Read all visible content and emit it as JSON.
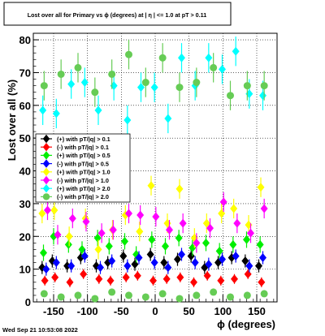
{
  "chart_data": {
    "type": "scatter",
    "title": "Lost over all for Primary vs ϕ (degrees) at |  η | <= 1.0 at pT > 0.11",
    "xlabel": "ϕ (degrees)",
    "ylabel": "Lost over all (%)",
    "xlim": [
      -180,
      180
    ],
    "ylim": [
      0,
      82
    ],
    "x_ticks": [
      -150,
      -100,
      -50,
      0,
      50,
      100,
      150
    ],
    "y_ticks": [
      0,
      10,
      20,
      30,
      40,
      50,
      60,
      70,
      80
    ],
    "grid": true,
    "legend_position": "left",
    "timestamp": "Wed Sep 21 10:53:08 2022",
    "series": [
      {
        "name": "(+) with pT/|q| > 0.1",
        "color": "#000000",
        "marker": "diamond",
        "x": [
          -167,
          -152,
          -130,
          -110,
          -87,
          -70,
          -47,
          -30,
          -7,
          13,
          33,
          53,
          73,
          93,
          113,
          133,
          153
        ],
        "y": [
          10.5,
          12.5,
          11.0,
          13.5,
          11.0,
          12.0,
          14.0,
          11.5,
          14.5,
          12.0,
          13.0,
          14.0,
          10.5,
          12.0,
          13.5,
          12.5,
          11.0
        ],
        "err": [
          2,
          2,
          2,
          2,
          2,
          2,
          2,
          2,
          2,
          2,
          2,
          2,
          2,
          2,
          2,
          2,
          2
        ]
      },
      {
        "name": "(-) with pT/|q| > 0.1",
        "color": "#ff0000",
        "marker": "diamond",
        "x": [
          -163,
          -148,
          -126,
          -106,
          -83,
          -66,
          -43,
          -26,
          -3,
          17,
          37,
          57,
          77,
          97,
          117,
          137,
          157
        ],
        "y": [
          6.5,
          7.5,
          6.0,
          8.5,
          7.0,
          6.5,
          7.5,
          8.0,
          6.5,
          7.0,
          7.5,
          6.0,
          8.0,
          6.5,
          7.0,
          8.5,
          6.0
        ],
        "err": [
          1.5,
          1.5,
          1.5,
          1.5,
          1.5,
          1.5,
          1.5,
          1.5,
          1.5,
          1.5,
          1.5,
          1.5,
          1.5,
          1.5,
          1.5,
          1.5,
          1.5
        ]
      },
      {
        "name": "(+) with pT/|q| > 0.5",
        "color": "#00ee00",
        "marker": "diamond",
        "x": [
          -165,
          -150,
          -128,
          -108,
          -85,
          -68,
          -45,
          -28,
          -5,
          15,
          35,
          55,
          75,
          95,
          115,
          135,
          155
        ],
        "y": [
          15.0,
          20.0,
          17.5,
          16.0,
          19.5,
          17.0,
          18.5,
          14.5,
          19.0,
          17.0,
          19.5,
          16.5,
          18.0,
          15.5,
          17.5,
          19.0,
          17.5
        ],
        "err": [
          2.5,
          2.5,
          2.5,
          2.5,
          2.5,
          2.5,
          2.5,
          2.5,
          2.5,
          2.5,
          2.5,
          2.5,
          2.5,
          2.5,
          2.5,
          2.5,
          2.5
        ]
      },
      {
        "name": "(-) with pT/|q| > 0.5",
        "color": "#0000ff",
        "marker": "diamond",
        "x": [
          -161,
          -146,
          -124,
          -104,
          -81,
          -64,
          -41,
          -24,
          -1,
          19,
          39,
          59,
          79,
          99,
          119,
          139,
          159
        ],
        "y": [
          10.0,
          12.0,
          11.0,
          14.0,
          10.5,
          12.5,
          11.0,
          13.5,
          12.0,
          10.5,
          14.5,
          12.0,
          11.5,
          13.0,
          14.0,
          11.0,
          13.5
        ],
        "err": [
          2,
          2,
          2,
          2,
          2,
          2,
          2,
          2,
          2,
          2,
          2,
          2,
          2,
          2,
          2,
          2,
          2
        ]
      },
      {
        "name": "(+) with pT/|q| > 1.0",
        "color": "#ffff00",
        "marker": "diamond",
        "x": [
          -167,
          -149,
          -127,
          -103,
          -84,
          -63,
          -44,
          -23,
          -6,
          18,
          36,
          58,
          76,
          98,
          116,
          138,
          156
        ],
        "y": [
          27.0,
          28.0,
          20.0,
          25.5,
          16.0,
          22.0,
          26.5,
          21.5,
          35.5,
          24.0,
          34.5,
          19.5,
          24.0,
          27.0,
          28.5,
          23.5,
          35.0
        ],
        "err": [
          3,
          3,
          3,
          3,
          3,
          3,
          3,
          3,
          3,
          3,
          3,
          3,
          3,
          3,
          3,
          3,
          3
        ]
      },
      {
        "name": "(-) with pT/|q| > 1.0",
        "color": "#ff00ff",
        "marker": "diamond",
        "x": [
          -159,
          -144,
          -122,
          -102,
          -79,
          -62,
          -39,
          -22,
          1,
          21,
          41,
          61,
          81,
          101,
          121,
          141,
          161
        ],
        "y": [
          28.0,
          20.5,
          25.5,
          24.5,
          21.0,
          22.0,
          27.0,
          26.5,
          26.0,
          22.0,
          24.0,
          18.0,
          22.5,
          30.5,
          24.0,
          21.0,
          28.5
        ],
        "err": [
          3,
          3,
          3,
          3,
          3,
          3,
          3,
          3,
          3,
          3,
          3,
          3,
          3,
          3,
          3,
          3,
          3
        ]
      },
      {
        "name": "(+) with pT/|q| > 2.0",
        "color": "#00ffff",
        "marker": "diamond",
        "x": [
          -166,
          -146,
          -124,
          -104,
          -84,
          -61,
          -41,
          -21,
          -1,
          19,
          39,
          59,
          79,
          99,
          119,
          139,
          159
        ],
        "y": [
          58.5,
          57.5,
          66.5,
          67.0,
          58.5,
          66.0,
          55.5,
          65.5,
          65.5,
          56.0,
          74.5,
          66.0,
          74.5,
          71.0,
          76.5,
          63.5,
          63.0
        ],
        "err": [
          4.5,
          4.5,
          4.5,
          4.5,
          4.5,
          4.5,
          4.5,
          4.5,
          4.5,
          4.5,
          4.5,
          4.5,
          4.5,
          4.5,
          4.5,
          4.5,
          4.5
        ]
      },
      {
        "name": "(-) with pT/|q| > 2.0",
        "color": "#66cc55",
        "marker": "circle",
        "x": [
          -164,
          -139,
          -114,
          -89,
          -64,
          -39,
          -14,
          11,
          36,
          61,
          86,
          111,
          136,
          161
        ],
        "y": [
          66.0,
          69.5,
          71.5,
          64.0,
          69.5,
          75.5,
          67.0,
          74.5,
          65.5,
          67.0,
          71.5,
          63.0,
          66.0,
          66.0
        ],
        "err": [
          4.5,
          4.5,
          4.5,
          4.5,
          4.5,
          4.5,
          4.5,
          4.5,
          4.5,
          4.5,
          4.5,
          4.5,
          4.5,
          4.5
        ]
      },
      {
        "name": "",
        "color": "#66cc55",
        "marker": "circle",
        "x": [
          -164,
          -139,
          -114,
          -89,
          -64,
          -39,
          -14,
          11,
          36,
          61,
          86,
          111,
          136,
          161
        ],
        "y": [
          2.5,
          1.5,
          2.0,
          1.0,
          3.0,
          2.0,
          1.5,
          2.5,
          1.0,
          2.0,
          3.0,
          1.5,
          2.0,
          2.5
        ],
        "err": [
          1,
          1,
          1,
          1,
          1,
          1,
          1,
          1,
          1,
          1,
          1,
          1,
          1,
          1
        ]
      }
    ]
  }
}
